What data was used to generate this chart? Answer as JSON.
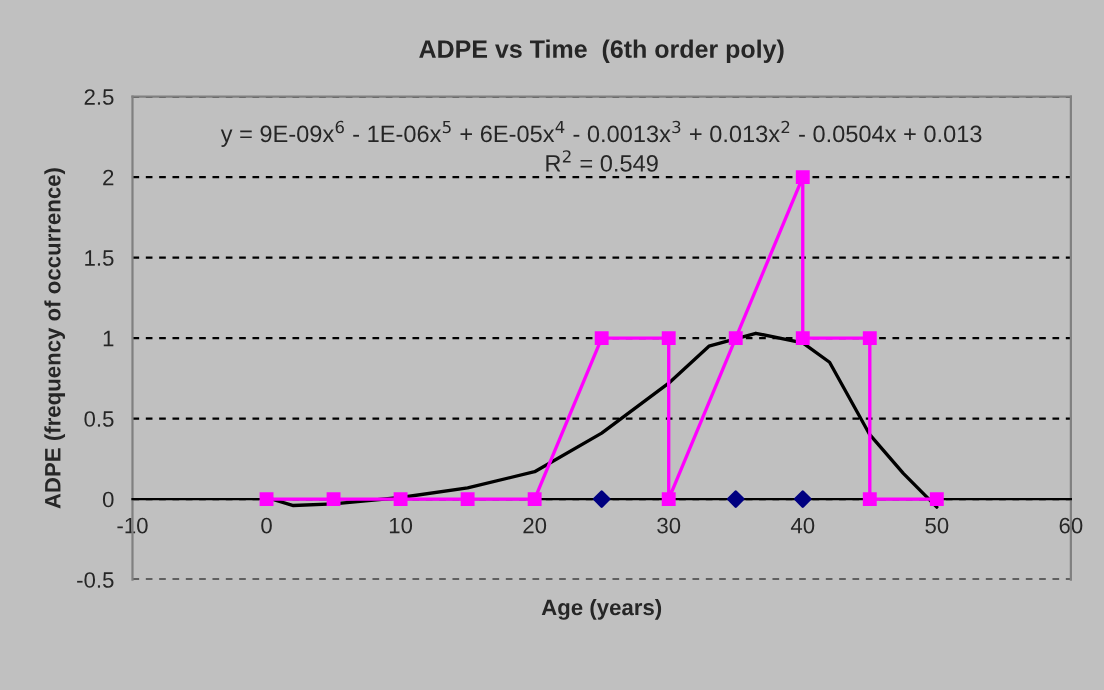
{
  "chart_data": {
    "type": "line",
    "title": "ADPE vs Time  (6th order poly)",
    "xlabel": "Age (years)",
    "ylabel": "ADPE (frequency of occurrence)",
    "series": [
      {
        "color": "#ff00ff",
        "marker": "square",
        "x": [
          0,
          5,
          10,
          15,
          20,
          25,
          30,
          30,
          35,
          40,
          40,
          45,
          45,
          50
        ],
        "values": [
          0,
          0,
          0,
          0,
          0,
          1,
          1,
          0,
          1,
          2,
          1,
          1,
          0,
          0
        ]
      },
      {
        "type": "scatter",
        "color": "#000080",
        "marker": "diamond",
        "x": [
          25,
          35,
          40
        ],
        "values": [
          0,
          0,
          0
        ]
      },
      {
        "type": "line",
        "color": "#000000",
        "marker": "none",
        "x": [
          0,
          2,
          5,
          10,
          15,
          20,
          25,
          30,
          33,
          36.5,
          40,
          42,
          45,
          47.5,
          50
        ],
        "values": [
          0.01,
          -0.04,
          -0.03,
          0.01,
          0.07,
          0.17,
          0.41,
          0.72,
          0.95,
          1.03,
          0.97,
          0.85,
          0.4,
          0.16,
          -0.05
        ]
      }
    ],
    "annotations": [
      "y = 9E-09x$^{6}$ - 1E-06x$^{5}$ + 6E-05x$^{4}$ - 0.0013x$^{3}$ + 0.013x$^{2}$ - 0.0504x + 0.013",
      "R$^{2}$ = 0.549"
    ],
    "xlim": [
      -10,
      60
    ],
    "xticks": [
      -10,
      0,
      10,
      20,
      30,
      40,
      50,
      60
    ],
    "ylim": [
      -0.5,
      2.5
    ],
    "yticks": [
      -0.5,
      0,
      0.5,
      1,
      1.5,
      2,
      2.5
    ],
    "grid": "y",
    "legend": false
  }
}
